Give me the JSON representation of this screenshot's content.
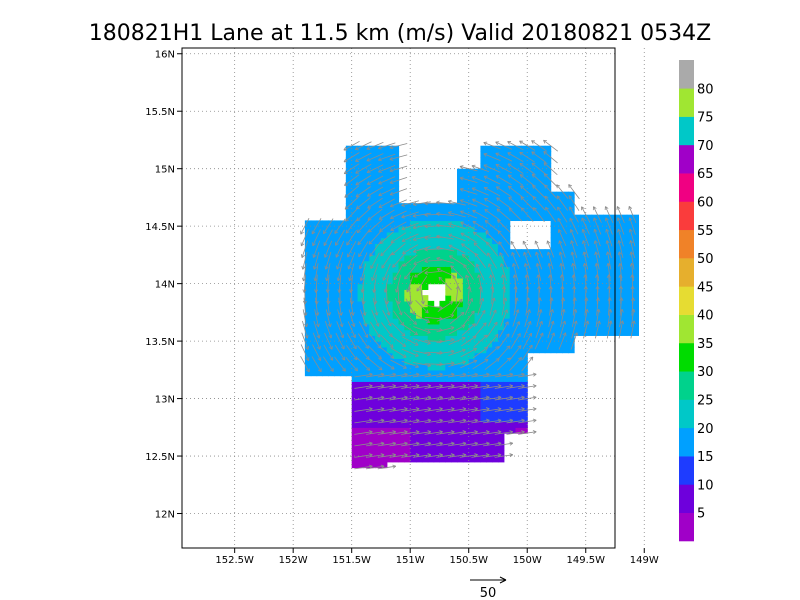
{
  "chart_data": {
    "type": "heatmap",
    "title": "180821H1 Lane at 11.5 km (m/s) Valid 20180821  0534Z",
    "x_ticks": [
      {
        "value": -152.5,
        "label": "152.5W"
      },
      {
        "value": -152.0,
        "label": "152W"
      },
      {
        "value": -151.5,
        "label": "151.5W"
      },
      {
        "value": -151.0,
        "label": "151W"
      },
      {
        "value": -150.5,
        "label": "150.5W"
      },
      {
        "value": -150.0,
        "label": "150W"
      },
      {
        "value": -149.5,
        "label": "149.5W"
      },
      {
        "value": -149.0,
        "label": "149W"
      }
    ],
    "y_ticks": [
      {
        "value": 12.0,
        "label": "12N"
      },
      {
        "value": 12.5,
        "label": "12.5N"
      },
      {
        "value": 13.0,
        "label": "13N"
      },
      {
        "value": 13.5,
        "label": "13.5N"
      },
      {
        "value": 14.0,
        "label": "14N"
      },
      {
        "value": 14.5,
        "label": "14.5N"
      },
      {
        "value": 15.0,
        "label": "15N"
      },
      {
        "value": 15.5,
        "label": "15.5N"
      },
      {
        "value": 16.0,
        "label": "16N"
      }
    ],
    "xlim": [
      -152.95,
      -149.25
    ],
    "ylim": [
      11.7,
      16.05
    ],
    "grid": true,
    "center": {
      "lon": -150.78,
      "lat": 13.92
    },
    "eye_radius_deg": 0.1,
    "wind_speed_bands": [
      {
        "min_radius_deg": 0.0,
        "max_radius_deg": 0.1,
        "value": null
      },
      {
        "min_radius_deg": 0.1,
        "max_radius_deg": 0.25,
        "value": 37
      },
      {
        "min_radius_deg": 0.25,
        "max_radius_deg": 0.4,
        "value": 32
      },
      {
        "min_radius_deg": 0.4,
        "max_radius_deg": 0.65,
        "value": 27
      },
      {
        "min_radius_deg": 0.65,
        "max_radius_deg": 2.0,
        "value": 22
      }
    ],
    "southern_region": {
      "lat_below": 13.15,
      "value_range": [
        10,
        15
      ],
      "purple_patch": {
        "lon_range": [
          -151.5,
          -151.0
        ],
        "lat_range": [
          12.35,
          12.75
        ],
        "value": 8
      }
    },
    "colorbar": {
      "label_values": [
        "5",
        "10",
        "15",
        "20",
        "25",
        "30",
        "35",
        "40",
        "45",
        "50",
        "55",
        "60",
        "65",
        "70",
        "75",
        "80"
      ],
      "colors": [
        "#a000c8",
        "#6e00dc",
        "#1e3cff",
        "#00a0ff",
        "#00c8c8",
        "#00d28c",
        "#00dc00",
        "#a0e632",
        "#e6dc32",
        "#e6af2d",
        "#f08228",
        "#fa3c3c",
        "#f00082",
        "#a000c8",
        "#00c8c8",
        "#a0e632",
        "#aaaaaa"
      ]
    },
    "reference_vector": {
      "value": "50"
    }
  }
}
